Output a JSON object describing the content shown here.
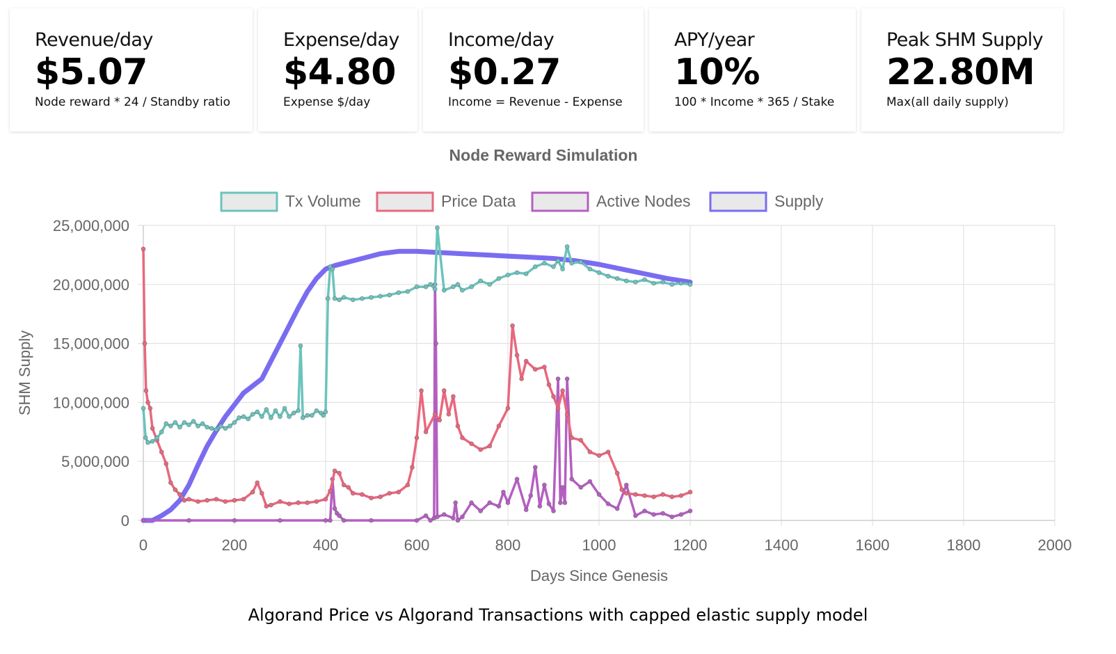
{
  "cards": [
    {
      "title": "Revenue/day",
      "value": "$5.07",
      "sub": "Node reward * 24 / Standby ratio"
    },
    {
      "title": "Expense/day",
      "value": "$4.80",
      "sub": "Expense $/day"
    },
    {
      "title": "Income/day",
      "value": "$0.27",
      "sub": "Income = Revenue - Expense"
    },
    {
      "title": "APY/year",
      "value": "10%",
      "sub": "100 * Income * 365 / Stake"
    },
    {
      "title": "Peak SHM Supply",
      "value": "22.80M",
      "sub": "Max(all daily supply)"
    }
  ],
  "caption": "Algorand Price vs Algorand Transactions with capped elastic supply model",
  "chart_data": {
    "type": "line",
    "title": "Node Reward Simulation",
    "xlabel": "Days Since Genesis",
    "ylabel": "SHM Supply",
    "xlim": [
      0,
      2000
    ],
    "ylim": [
      0,
      25000000
    ],
    "x_ticks": [
      "0",
      "200",
      "400",
      "600",
      "800",
      "1000",
      "1200",
      "1400",
      "1600",
      "1800",
      "2000"
    ],
    "y_ticks": [
      "0",
      "5,000,000",
      "10,000,000",
      "15,000,000",
      "20,000,000",
      "25,000,000"
    ],
    "grid": true,
    "legend_position": "top",
    "series": [
      {
        "name": "Tx Volume",
        "color": "#6cc3bc",
        "x": [
          0,
          5,
          10,
          20,
          30,
          40,
          50,
          60,
          70,
          80,
          90,
          100,
          110,
          120,
          130,
          140,
          150,
          160,
          170,
          180,
          190,
          200,
          210,
          220,
          230,
          240,
          250,
          260,
          270,
          280,
          290,
          300,
          310,
          320,
          330,
          340,
          345,
          350,
          360,
          370,
          380,
          390,
          395,
          400,
          405,
          410,
          415,
          420,
          430,
          440,
          460,
          480,
          500,
          520,
          540,
          560,
          580,
          600,
          620,
          630,
          640,
          645,
          660,
          680,
          690,
          700,
          720,
          740,
          760,
          780,
          800,
          820,
          840,
          860,
          880,
          900,
          910,
          920,
          930,
          940,
          960,
          980,
          1000,
          1020,
          1040,
          1060,
          1080,
          1100,
          1120,
          1140,
          1160,
          1180,
          1200
        ],
        "y": [
          9500000,
          7000000,
          6600000,
          6700000,
          7000000,
          7500000,
          8200000,
          8000000,
          8300000,
          7900000,
          8300000,
          8100000,
          8400000,
          8000000,
          8200000,
          7900000,
          7800000,
          7700000,
          8000000,
          7800000,
          8000000,
          8300000,
          8700000,
          8800000,
          8600000,
          9000000,
          9200000,
          8800000,
          9400000,
          8700000,
          9300000,
          8800000,
          9500000,
          8800000,
          9100000,
          9300000,
          14800000,
          8700000,
          8900000,
          8900000,
          9300000,
          9100000,
          8900000,
          9200000,
          18800000,
          21500000,
          21300000,
          18800000,
          18700000,
          18900000,
          18700000,
          18800000,
          18900000,
          19000000,
          19100000,
          19300000,
          19400000,
          19800000,
          19800000,
          20000000,
          19600000,
          24800000,
          19500000,
          19800000,
          20000000,
          19500000,
          19800000,
          20300000,
          20000000,
          20500000,
          20800000,
          21000000,
          20900000,
          21500000,
          21800000,
          21500000,
          22000000,
          21300000,
          23200000,
          21800000,
          21900000,
          21300000,
          21000000,
          20700000,
          20500000,
          20300000,
          20200000,
          20400000,
          20100000,
          20200000,
          20000000,
          20100000,
          20000000
        ]
      },
      {
        "name": "Price Data",
        "color": "#e8687e",
        "x": [
          0,
          3,
          6,
          10,
          15,
          20,
          30,
          40,
          50,
          60,
          70,
          80,
          90,
          100,
          120,
          140,
          160,
          180,
          200,
          220,
          240,
          250,
          260,
          270,
          280,
          300,
          320,
          340,
          360,
          380,
          400,
          410,
          420,
          430,
          440,
          450,
          460,
          480,
          500,
          520,
          540,
          560,
          580,
          590,
          600,
          610,
          620,
          640,
          650,
          660,
          670,
          680,
          690,
          700,
          720,
          740,
          760,
          780,
          800,
          810,
          820,
          830,
          840,
          860,
          880,
          890,
          900,
          910,
          920,
          930,
          940,
          960,
          980,
          1000,
          1020,
          1040,
          1050,
          1060,
          1080,
          1100,
          1120,
          1140,
          1160,
          1180,
          1200
        ],
        "y": [
          23000000,
          15000000,
          11000000,
          10000000,
          9500000,
          7800000,
          6800000,
          5800000,
          4800000,
          3200000,
          2600000,
          2200000,
          1700000,
          1800000,
          1600000,
          1700000,
          1800000,
          1600000,
          1700000,
          1800000,
          2400000,
          3200000,
          2300000,
          1200000,
          1300000,
          1600000,
          1400000,
          1500000,
          1500000,
          1600000,
          1800000,
          2500000,
          4200000,
          4000000,
          3000000,
          2800000,
          2300000,
          2200000,
          1900000,
          2000000,
          2300000,
          2400000,
          3000000,
          4500000,
          7000000,
          11000000,
          7500000,
          9000000,
          8500000,
          11000000,
          9000000,
          10500000,
          8000000,
          7000000,
          6500000,
          6000000,
          6300000,
          8000000,
          9500000,
          16500000,
          14000000,
          12000000,
          13500000,
          12800000,
          13000000,
          11500000,
          10500000,
          9500000,
          11000000,
          9000000,
          7000000,
          6800000,
          5800000,
          5500000,
          5800000,
          4000000,
          2600000,
          2300000,
          2200000,
          2100000,
          2000000,
          2200000,
          2000000,
          2100000,
          2400000
        ]
      },
      {
        "name": "Active Nodes",
        "color": "#b45fc1",
        "x": [
          0,
          100,
          200,
          300,
          400,
          410,
          415,
          420,
          425,
          430,
          440,
          500,
          600,
          620,
          630,
          638,
          640,
          642,
          645,
          660,
          680,
          685,
          690,
          700,
          720,
          740,
          760,
          780,
          790,
          800,
          820,
          840,
          850,
          860,
          870,
          880,
          890,
          900,
          910,
          915,
          920,
          925,
          930,
          940,
          960,
          980,
          1000,
          1020,
          1040,
          1060,
          1080,
          1100,
          1120,
          1140,
          1160,
          1180,
          1200
        ],
        "y": [
          0,
          0,
          0,
          0,
          0,
          0,
          3500000,
          1000000,
          600000,
          400000,
          0,
          0,
          0,
          400000,
          0,
          200000,
          20000000,
          15000000,
          300000,
          500000,
          200000,
          1500000,
          0,
          300000,
          1500000,
          800000,
          1500000,
          1200000,
          2400000,
          1500000,
          3500000,
          900000,
          2100000,
          4500000,
          1200000,
          3000000,
          1400000,
          800000,
          12000000,
          1500000,
          2800000,
          1500000,
          12000000,
          3500000,
          2800000,
          3300000,
          2200000,
          1400000,
          1000000,
          3000000,
          400000,
          800000,
          500000,
          600000,
          300000,
          500000,
          800000
        ]
      },
      {
        "name": "Supply",
        "color": "#7a6cf0",
        "x": [
          0,
          20,
          40,
          60,
          80,
          100,
          120,
          140,
          160,
          180,
          200,
          220,
          240,
          260,
          280,
          300,
          320,
          340,
          360,
          380,
          400,
          420,
          440,
          460,
          480,
          500,
          520,
          540,
          560,
          580,
          600,
          650,
          700,
          750,
          800,
          850,
          900,
          950,
          1000,
          1050,
          1100,
          1150,
          1200
        ],
        "y": [
          0,
          0,
          400000,
          900000,
          1700000,
          3000000,
          4700000,
          6300000,
          7600000,
          8800000,
          9800000,
          10800000,
          11400000,
          12000000,
          13500000,
          15000000,
          16500000,
          18000000,
          19400000,
          20500000,
          21300000,
          21600000,
          21800000,
          22000000,
          22200000,
          22400000,
          22600000,
          22700000,
          22800000,
          22800000,
          22800000,
          22700000,
          22600000,
          22500000,
          22400000,
          22300000,
          22200000,
          22000000,
          21700000,
          21300000,
          20900000,
          20500000,
          20200000
        ]
      }
    ]
  }
}
